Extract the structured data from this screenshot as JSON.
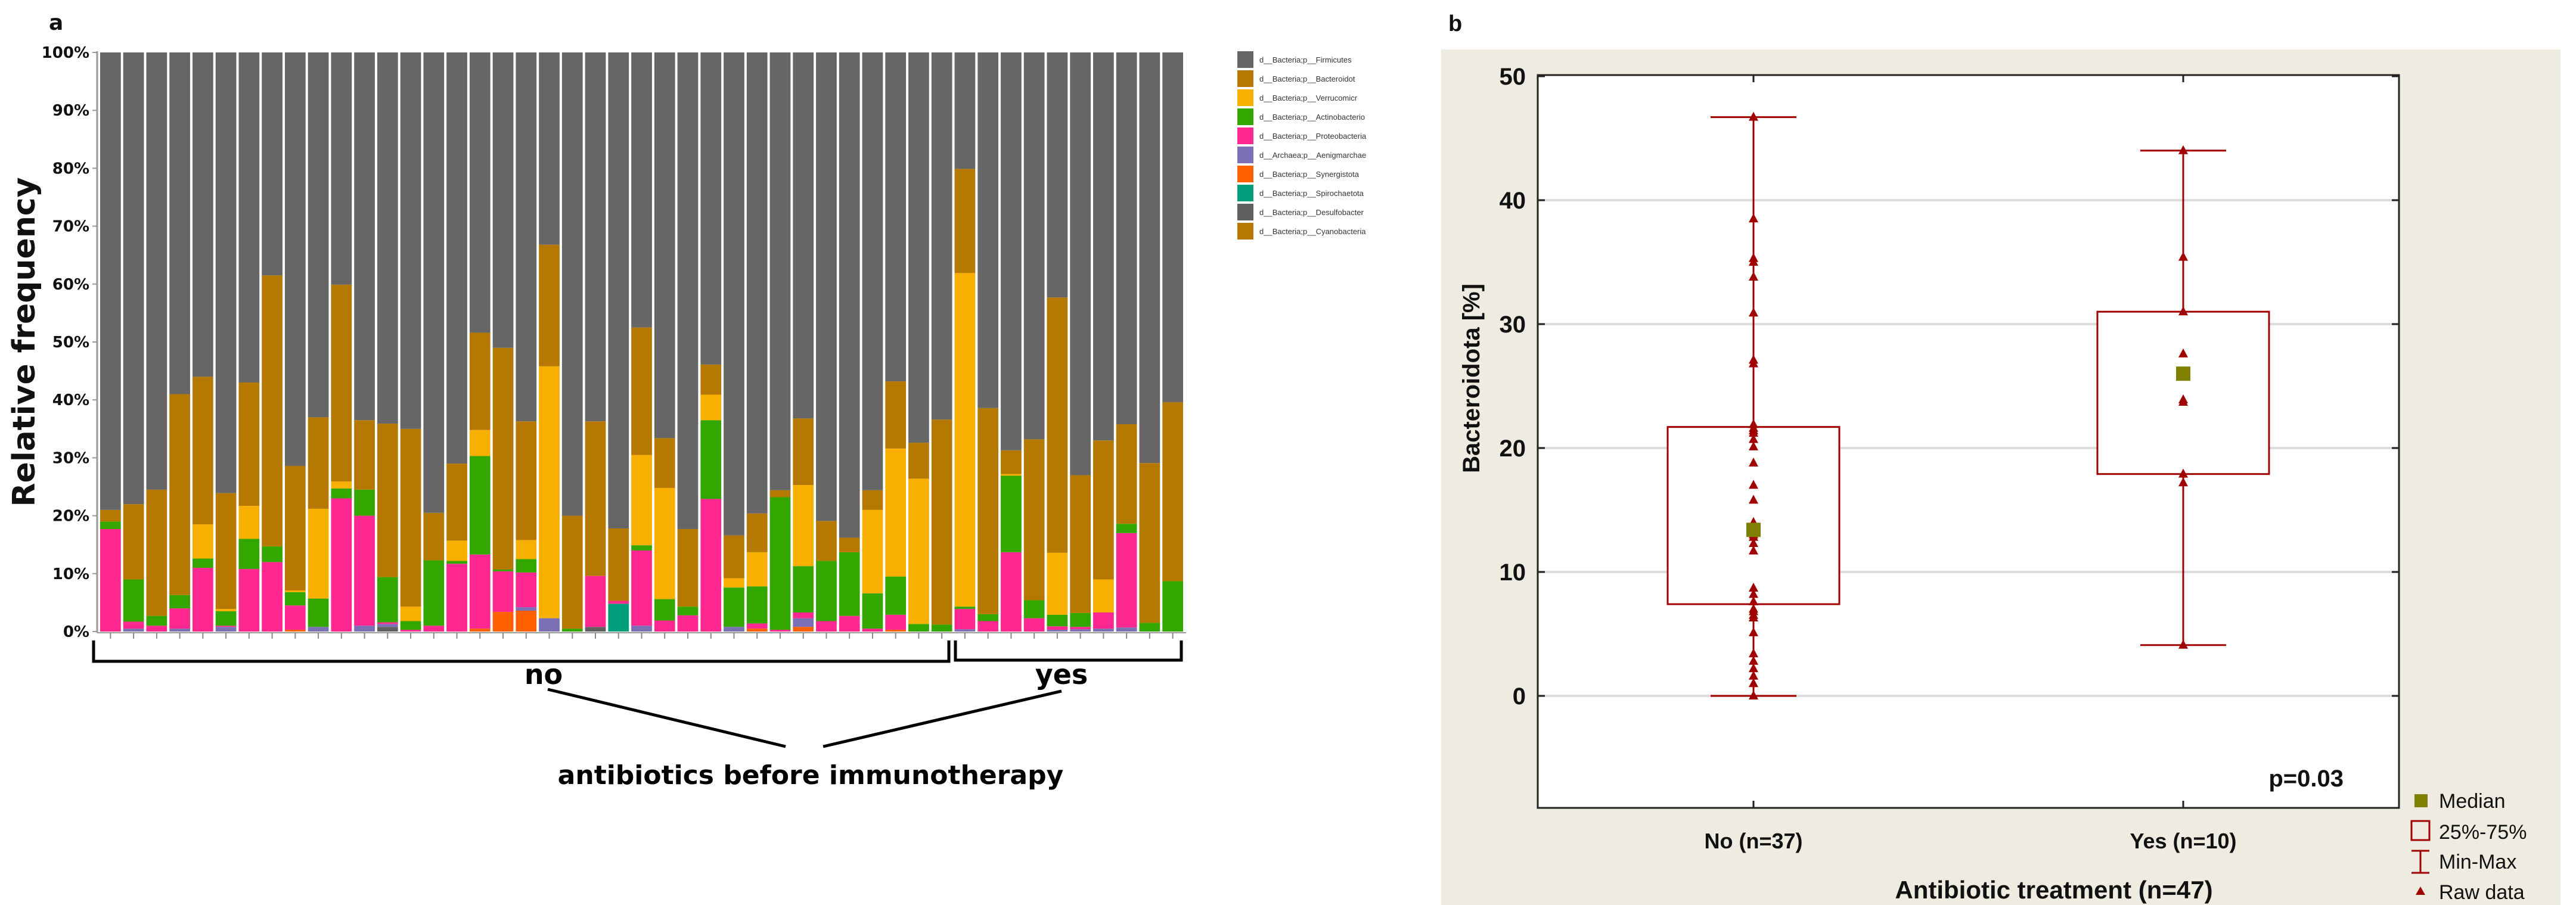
{
  "chart_data": [
    {
      "type": "bar",
      "stacked": true,
      "panel_label": "a",
      "ylabel": "Relative frequency",
      "ylim": [
        0,
        100
      ],
      "ytick_labels": [
        "0%",
        "10%",
        "20%",
        "30%",
        "40%",
        "50%",
        "60%",
        "70%",
        "80%",
        "90%",
        "100%"
      ],
      "n_samples": 47,
      "groups": [
        {
          "label": "no",
          "count": 37
        },
        {
          "label": "yes",
          "count": 10
        }
      ],
      "group_title": "antibiotics before immunotherapy",
      "legend_position": "right",
      "series": [
        {
          "name": "d__Bacteria;p__Firmicutes",
          "color": "#666666",
          "remainder": true
        },
        {
          "name": "d__Bacteria;p__Bacteroidot",
          "color": "#b57800",
          "key": "bac",
          "values": [
            2,
            13,
            21.8,
            34.7,
            25.5,
            20,
            21.3,
            46.8,
            21.5,
            15.8,
            34,
            12,
            26.5,
            30.7,
            8.2,
            13.3,
            16.8,
            38.3,
            20.5,
            21,
            19.5,
            26.7,
            12.5,
            22,
            8.6,
            13.4,
            5.2,
            7.4,
            6.7,
            1.2,
            11.5,
            6.9,
            2.5,
            3.4,
            11.6,
            6.2,
            35.4,
            18,
            35.6,
            4.1,
            27.8,
            44.1,
            23.8,
            24,
            17.2,
            27.6,
            30.9
          ]
        },
        {
          "name": "d__Bacteria;p__Verrucomicr",
          "color": "#f8b000",
          "key": "ver",
          "values": [
            0,
            0,
            0,
            0,
            5.9,
            0.4,
            5.7,
            0,
            0.3,
            15.5,
            1.2,
            0,
            0,
            2.5,
            0,
            3.5,
            4.5,
            0,
            3.3,
            43.5,
            0,
            0,
            0,
            15.6,
            19.2,
            0,
            4.4,
            1.6,
            5.9,
            0,
            14,
            0,
            0,
            14.4,
            22.1,
            25.1,
            0,
            57.6,
            0,
            0.3,
            0,
            10.7,
            0,
            5.7,
            0,
            0,
            0
          ]
        },
        {
          "name": "d__Bacteria;p__Actinobacterio",
          "color": "#33a600",
          "key": "act",
          "values": [
            1.3,
            7.3,
            1.7,
            2.3,
            1.6,
            2.5,
            5.2,
            2.7,
            2.3,
            4.9,
            1.7,
            4.5,
            7.8,
            1.5,
            11.3,
            0.5,
            17,
            0.3,
            2.3,
            0,
            0.5,
            0,
            0,
            0.9,
            3.7,
            1.5,
            13.6,
            6.8,
            6.4,
            22.9,
            8,
            10.4,
            11,
            6.1,
            6.6,
            1.3,
            1.2,
            0.4,
            1.2,
            13.2,
            3.1,
            2,
            2.4,
            0,
            1.6,
            1.5,
            8.7
          ]
        },
        {
          "name": "d__Bacteria;p__Proteobacteria",
          "color": "#ff2890",
          "key": "pro",
          "values": [
            17.7,
            1.2,
            1,
            3.5,
            11,
            0.2,
            10.8,
            12,
            4.2,
            0,
            23,
            19,
            0.3,
            0.3,
            1,
            11.7,
            12.8,
            7,
            6,
            0,
            0,
            8.8,
            0.5,
            13,
            1.9,
            2.8,
            22.9,
            0,
            0.9,
            0.3,
            1,
            1.8,
            2.7,
            0.5,
            2.6,
            0,
            0,
            3.5,
            1.8,
            13.7,
            2.3,
            0.6,
            0.4,
            2.8,
            16.3,
            0,
            0
          ]
        },
        {
          "name": "d__Archaea;p__Aenigmarchae",
          "color": "#7b6fb5",
          "key": "arc",
          "values": [
            0,
            0.5,
            0,
            0.5,
            0,
            0.8,
            0,
            0,
            0,
            0.8,
            0,
            1,
            0.5,
            0,
            0,
            0,
            0,
            0,
            0.6,
            2.3,
            0,
            0,
            0,
            1,
            0,
            0,
            0,
            0.8,
            0,
            0,
            1.5,
            0,
            0,
            0,
            0,
            0,
            0,
            0.4,
            0,
            0,
            0,
            0.3,
            0.4,
            0.5,
            0.7,
            0,
            0
          ]
        },
        {
          "name": "d__Bacteria;p__Synergistota",
          "color": "#ff6000",
          "key": "syn",
          "values": [
            0,
            0,
            0,
            0,
            0,
            0,
            0,
            0,
            0.3,
            0,
            0,
            0,
            0,
            0,
            0,
            0,
            0.5,
            3.4,
            3.6,
            0,
            0,
            0,
            0,
            0,
            0,
            0,
            0,
            0,
            0.5,
            0,
            0.8,
            0,
            0,
            0,
            0.3,
            0,
            0,
            0,
            0,
            0,
            0,
            0,
            0,
            0,
            0,
            0,
            0
          ]
        },
        {
          "name": "d__Bacteria;p__Spirochaetota",
          "color": "#009e7a",
          "key": "spi",
          "values": [
            0,
            0,
            0,
            0,
            0,
            0,
            0,
            0,
            0,
            0,
            0,
            0,
            0,
            0,
            0,
            0,
            0,
            0,
            0,
            0,
            0,
            0,
            4.8,
            0,
            0,
            0,
            0,
            0,
            0,
            0,
            0,
            0,
            0,
            0,
            0,
            0,
            0,
            0,
            0,
            0,
            0,
            0,
            0,
            0,
            0,
            0,
            0
          ]
        },
        {
          "name": "d__Bacteria;p__Desulfobacter",
          "color": "#606060",
          "key": "des",
          "values": [
            0,
            0,
            0,
            0,
            0,
            0,
            0,
            0,
            0,
            0,
            0,
            0,
            0.8,
            0,
            0,
            0,
            0,
            0,
            0,
            0,
            0,
            0.8,
            0,
            0,
            0,
            0,
            0,
            0,
            0,
            0,
            0,
            0,
            0,
            0,
            0,
            0,
            0,
            0,
            0,
            0,
            0,
            0,
            0,
            0,
            0,
            0,
            0
          ]
        },
        {
          "name": "d__Bacteria;p__Cyanobacteria",
          "color": "#b57800",
          "key": "cya",
          "values": [
            0,
            0,
            0,
            0,
            0,
            0,
            0,
            0,
            0,
            0,
            0,
            0,
            0,
            0,
            0,
            0,
            0,
            0,
            0,
            0,
            0,
            0,
            0,
            0,
            0,
            0,
            0,
            0,
            0,
            0,
            0,
            0,
            0,
            0,
            0,
            0,
            0,
            0,
            0,
            0,
            0,
            0,
            0,
            0,
            0,
            0,
            0
          ]
        }
      ]
    },
    {
      "type": "box",
      "panel_label": "b",
      "xlabel": "Antibiotic treatment (n=47)",
      "ylabel": "Bacteroidota [%]",
      "ylim": [
        -9,
        50
      ],
      "ytick_labels": [
        "0",
        "10",
        "20",
        "30",
        "40",
        "50"
      ],
      "annotation": "p=0.03",
      "grid": true,
      "legend_position": "bottom-right",
      "legend": [
        "Median",
        "25%-75%",
        "Min-Max",
        "Raw data"
      ],
      "categories": [
        {
          "label": "No (n=37)",
          "median": 13.4,
          "q1": 7.4,
          "q3": 21.7,
          "min": 0,
          "max": 46.7,
          "raw": [
            46.7,
            38.5,
            35.3,
            35.0,
            33.8,
            30.9,
            27.1,
            26.8,
            21.9,
            21.6,
            21.4,
            21.2,
            20.7,
            20.1,
            18.8,
            17.0,
            15.8,
            14.0,
            13.5,
            13.0,
            12.8,
            12.3,
            11.7,
            8.7,
            8.2,
            7.6,
            7.0,
            6.8,
            6.5,
            6.3,
            5.1,
            3.4,
            2.8,
            2.2,
            1.6,
            1.0,
            0
          ]
        },
        {
          "label": "Yes (n=10)",
          "median": 26.0,
          "q1": 17.9,
          "q3": 31.0,
          "min": 4.1,
          "max": 44.0,
          "raw": [
            44.0,
            35.4,
            31.0,
            27.6,
            25.9,
            23.9,
            23.7,
            17.9,
            17.2,
            4.1
          ]
        }
      ],
      "colors": {
        "box": "#a00000",
        "median": "#808000",
        "raw": "#a00000",
        "panel_bg": "#eeebe0"
      }
    }
  ]
}
